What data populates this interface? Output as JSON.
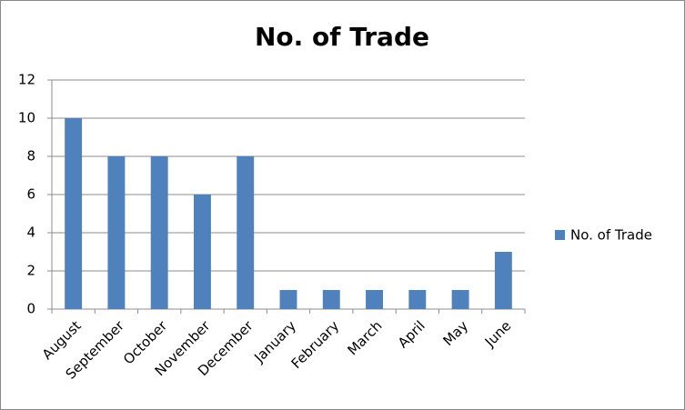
{
  "chart_data": {
    "type": "bar",
    "title": "No. of Trade",
    "categories": [
      "August",
      "September",
      "October",
      "November",
      "December",
      "January",
      "February",
      "March",
      "April",
      "May",
      "June"
    ],
    "series": [
      {
        "name": "No. of Trade",
        "color": "#4f81bd",
        "values": [
          10,
          8,
          8,
          6,
          8,
          1,
          1,
          1,
          1,
          1,
          3
        ]
      }
    ],
    "ylim": [
      0,
      12
    ],
    "yticks": [
      0,
      2,
      4,
      6,
      8,
      10,
      12
    ],
    "grid": true,
    "legend": "right"
  }
}
